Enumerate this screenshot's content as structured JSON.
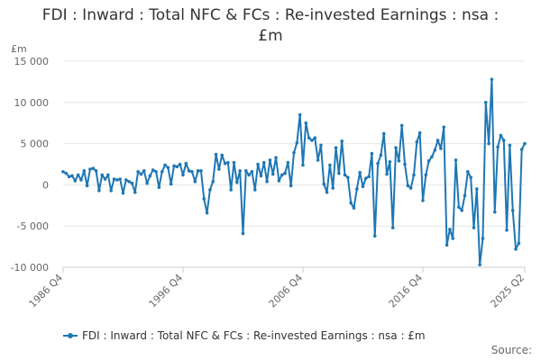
{
  "colors": {
    "series": "#1f77b4",
    "grid": "#e6e6e6",
    "axis": "#cccccc"
  },
  "chart_data": {
    "type": "line",
    "title_lines": [
      "FDI : Inward : Total NFC & FCs : Re-invested Earnings : nsa :",
      "£m"
    ],
    "unit_label": "£m",
    "ylim": [
      -10000,
      15000
    ],
    "y_ticks": [
      15000,
      10000,
      5000,
      0,
      -5000,
      -10000
    ],
    "y_tick_labels": [
      "15 000",
      "10 000",
      "5 000",
      "0",
      "-5 000",
      "-10 000"
    ],
    "x_tick_labels": [
      {
        "label": "1986 Q4",
        "index": 0
      },
      {
        "label": "1996 Q4",
        "index": 40
      },
      {
        "label": "2006 Q4",
        "index": 80
      },
      {
        "label": "2016 Q4",
        "index": 120
      },
      {
        "label": "2025 Q2",
        "index": 154
      }
    ],
    "grid": true,
    "legend_position": "bottom-left",
    "series": [
      {
        "name": "FDI : Inward : Total NFC & FCs : Re-invested Earnings : nsa : £m",
        "start": "1986 Q4",
        "values": [
          1600,
          1400,
          1000,
          1100,
          500,
          1200,
          600,
          1700,
          -100,
          1900,
          2000,
          1700,
          -700,
          1200,
          700,
          1200,
          -700,
          700,
          600,
          700,
          -1000,
          600,
          400,
          200,
          -900,
          1600,
          1300,
          1700,
          200,
          1100,
          1800,
          1600,
          -300,
          1600,
          2400,
          2100,
          100,
          2300,
          2200,
          2500,
          1200,
          2600,
          1700,
          1600,
          400,
          1700,
          1700,
          -1700,
          -3400,
          -600,
          400,
          3700,
          1900,
          3600,
          2600,
          2700,
          -600,
          2700,
          300,
          1700,
          -5900,
          1700,
          1200,
          1600,
          -600,
          2500,
          1100,
          2700,
          400,
          3000,
          1300,
          3300,
          500,
          1200,
          1400,
          2700,
          -100,
          3900,
          5100,
          8500,
          2400,
          7500,
          5700,
          5400,
          5700,
          3000,
          4800,
          100,
          -900,
          2400,
          -400,
          4500,
          1400,
          5300,
          1200,
          900,
          -2200,
          -2800,
          -500,
          1500,
          -200,
          800,
          1000,
          3800,
          -6200,
          2600,
          3600,
          6200,
          1300,
          2800,
          -5200,
          4500,
          2900,
          7200,
          2500,
          -100,
          -400,
          1200,
          5200,
          6300,
          -1900,
          1200,
          2900,
          3400,
          4200,
          5400,
          4400,
          7000,
          -7300,
          -5400,
          -6500,
          3000,
          -2700,
          -3100,
          -1300,
          1600,
          900,
          -5200,
          -500,
          -9700,
          -6500,
          10000,
          5000,
          12800,
          -3300,
          4600,
          6000,
          5400,
          -5500,
          4800,
          -3100,
          -7800,
          -7100,
          4300,
          5000
        ]
      }
    ]
  },
  "legend": {
    "label": "FDI : Inward : Total NFC & FCs : Re-invested Earnings : nsa : £m"
  },
  "source": "Source:"
}
